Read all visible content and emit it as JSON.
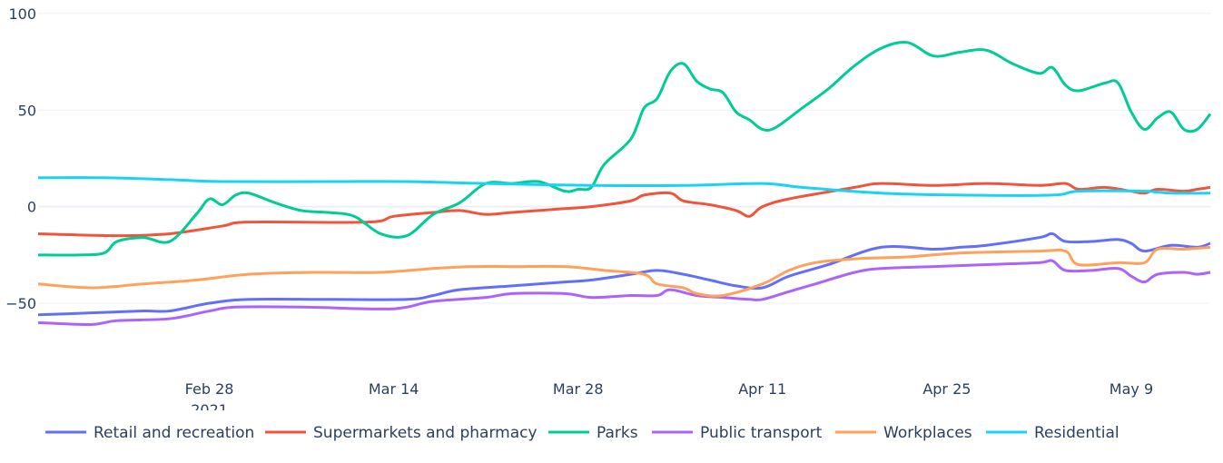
{
  "chart_data": {
    "type": "line",
    "title": "",
    "xlabel": "",
    "ylabel": "",
    "xlim": [
      "2021-02-15",
      "2021-05-15"
    ],
    "ylim": [
      -81,
      107
    ],
    "grid": true,
    "legend_placement": "bottom",
    "x_ticks": [
      {
        "date": "2021-02-28",
        "label": "Feb 28",
        "sub": "2021"
      },
      {
        "date": "2021-03-14",
        "label": "Mar 14"
      },
      {
        "date": "2021-03-28",
        "label": "Mar 28"
      },
      {
        "date": "2021-04-11",
        "label": "Apr 11"
      },
      {
        "date": "2021-04-25",
        "label": "Apr 25"
      },
      {
        "date": "2021-05-09",
        "label": "May 9"
      }
    ],
    "y_ticks": [
      {
        "value": 100,
        "label": "100"
      },
      {
        "value": 50,
        "label": "50"
      },
      {
        "value": 0,
        "label": "0"
      },
      {
        "value": -50,
        "label": "−50"
      }
    ],
    "series": [
      {
        "name": "Retail and recreation",
        "color": "#636efa",
        "points": [
          [
            "2021-02-15",
            -56
          ],
          [
            "2021-02-19",
            -55
          ],
          [
            "2021-02-23",
            -54
          ],
          [
            "2021-02-25",
            -54
          ],
          [
            "2021-02-28",
            -50
          ],
          [
            "2021-03-03",
            -48
          ],
          [
            "2021-03-09",
            -48
          ],
          [
            "2021-03-15",
            -48
          ],
          [
            "2021-03-17",
            -46
          ],
          [
            "2021-03-19",
            -43
          ],
          [
            "2021-03-23",
            -41
          ],
          [
            "2021-03-27",
            -39
          ],
          [
            "2021-03-29",
            -38
          ],
          [
            "2021-04-01",
            -35
          ],
          [
            "2021-04-03",
            -33
          ],
          [
            "2021-04-05",
            -35
          ],
          [
            "2021-04-07",
            -38
          ],
          [
            "2021-04-09",
            -41
          ],
          [
            "2021-04-11",
            -42
          ],
          [
            "2021-04-13",
            -36
          ],
          [
            "2021-04-16",
            -30
          ],
          [
            "2021-04-20",
            -21
          ],
          [
            "2021-04-24",
            -22
          ],
          [
            "2021-04-26",
            -21
          ],
          [
            "2021-04-28",
            -20
          ],
          [
            "2021-05-02",
            -16
          ],
          [
            "2021-05-03",
            -14
          ],
          [
            "2021-05-04",
            -18
          ],
          [
            "2021-05-06",
            -18
          ],
          [
            "2021-05-08",
            -17
          ],
          [
            "2021-05-09",
            -19
          ],
          [
            "2021-05-10",
            -23
          ],
          [
            "2021-05-12",
            -20
          ],
          [
            "2021-05-14",
            -21
          ],
          [
            "2021-05-15",
            -19
          ]
        ]
      },
      {
        "name": "Supermarkets and pharmacy",
        "color": "#EF553B",
        "points": [
          [
            "2021-02-15",
            -14
          ],
          [
            "2021-02-21",
            -15
          ],
          [
            "2021-02-25",
            -14
          ],
          [
            "2021-03-01",
            -10
          ],
          [
            "2021-03-03",
            -8
          ],
          [
            "2021-03-12",
            -8
          ],
          [
            "2021-03-14",
            -5
          ],
          [
            "2021-03-17",
            -3
          ],
          [
            "2021-03-19",
            -2
          ],
          [
            "2021-03-21",
            -4
          ],
          [
            "2021-03-23",
            -3
          ],
          [
            "2021-03-27",
            -1
          ],
          [
            "2021-03-29",
            0
          ],
          [
            "2021-04-01",
            3
          ],
          [
            "2021-04-02",
            6
          ],
          [
            "2021-04-04",
            7
          ],
          [
            "2021-04-05",
            3
          ],
          [
            "2021-04-07",
            1
          ],
          [
            "2021-04-09",
            -2
          ],
          [
            "2021-04-10",
            -5
          ],
          [
            "2021-04-11",
            0
          ],
          [
            "2021-04-13",
            4
          ],
          [
            "2021-04-18",
            10
          ],
          [
            "2021-04-20",
            12
          ],
          [
            "2021-04-24",
            11
          ],
          [
            "2021-04-28",
            12
          ],
          [
            "2021-05-02",
            11
          ],
          [
            "2021-05-04",
            12
          ],
          [
            "2021-05-05",
            9
          ],
          [
            "2021-05-07",
            10
          ],
          [
            "2021-05-09",
            8
          ],
          [
            "2021-05-10",
            7
          ],
          [
            "2021-05-11",
            9
          ],
          [
            "2021-05-13",
            8
          ],
          [
            "2021-05-14",
            9
          ],
          [
            "2021-05-15",
            10
          ]
        ]
      },
      {
        "name": "Parks",
        "color": "#00cc96",
        "points": [
          [
            "2021-02-15",
            -25
          ],
          [
            "2021-02-18",
            -25
          ],
          [
            "2021-02-20",
            -24
          ],
          [
            "2021-02-21",
            -18
          ],
          [
            "2021-02-23",
            -16
          ],
          [
            "2021-02-25",
            -18
          ],
          [
            "2021-02-27",
            -4
          ],
          [
            "2021-02-28",
            4
          ],
          [
            "2021-03-01",
            1
          ],
          [
            "2021-03-02",
            6
          ],
          [
            "2021-03-03",
            7
          ],
          [
            "2021-03-05",
            2
          ],
          [
            "2021-03-07",
            -2
          ],
          [
            "2021-03-09",
            -3
          ],
          [
            "2021-03-11",
            -5
          ],
          [
            "2021-03-13",
            -14
          ],
          [
            "2021-03-15",
            -15
          ],
          [
            "2021-03-17",
            -4
          ],
          [
            "2021-03-19",
            2
          ],
          [
            "2021-03-21",
            12
          ],
          [
            "2021-03-23",
            12
          ],
          [
            "2021-03-25",
            13
          ],
          [
            "2021-03-27",
            8
          ],
          [
            "2021-03-28",
            9
          ],
          [
            "2021-03-29",
            10
          ],
          [
            "2021-03-30",
            22
          ],
          [
            "2021-04-01",
            35
          ],
          [
            "2021-04-02",
            51
          ],
          [
            "2021-04-03",
            56
          ],
          [
            "2021-04-04",
            70
          ],
          [
            "2021-04-05",
            74
          ],
          [
            "2021-04-06",
            65
          ],
          [
            "2021-04-07",
            61
          ],
          [
            "2021-04-08",
            59
          ],
          [
            "2021-04-09",
            49
          ],
          [
            "2021-04-10",
            45
          ],
          [
            "2021-04-11",
            40
          ],
          [
            "2021-04-12",
            41
          ],
          [
            "2021-04-14",
            51
          ],
          [
            "2021-04-16",
            61
          ],
          [
            "2021-04-18",
            73
          ],
          [
            "2021-04-20",
            82
          ],
          [
            "2021-04-22",
            85
          ],
          [
            "2021-04-24",
            78
          ],
          [
            "2021-04-26",
            80
          ],
          [
            "2021-04-28",
            81
          ],
          [
            "2021-04-30",
            74
          ],
          [
            "2021-05-02",
            69
          ],
          [
            "2021-05-03",
            72
          ],
          [
            "2021-05-04",
            63
          ],
          [
            "2021-05-05",
            60
          ],
          [
            "2021-05-07",
            64
          ],
          [
            "2021-05-08",
            64
          ],
          [
            "2021-05-09",
            49
          ],
          [
            "2021-05-10",
            40
          ],
          [
            "2021-05-11",
            46
          ],
          [
            "2021-05-12",
            49
          ],
          [
            "2021-05-13",
            40
          ],
          [
            "2021-05-14",
            40
          ],
          [
            "2021-05-15",
            48
          ]
        ]
      },
      {
        "name": "Public transport",
        "color": "#ab63fa",
        "points": [
          [
            "2021-02-15",
            -60
          ],
          [
            "2021-02-19",
            -61
          ],
          [
            "2021-02-21",
            -59
          ],
          [
            "2021-02-25",
            -58
          ],
          [
            "2021-02-28",
            -54
          ],
          [
            "2021-03-02",
            -52
          ],
          [
            "2021-03-07",
            -52
          ],
          [
            "2021-03-13",
            -53
          ],
          [
            "2021-03-15",
            -52
          ],
          [
            "2021-03-17",
            -49
          ],
          [
            "2021-03-21",
            -47
          ],
          [
            "2021-03-23",
            -45
          ],
          [
            "2021-03-27",
            -45
          ],
          [
            "2021-03-29",
            -47
          ],
          [
            "2021-04-01",
            -46
          ],
          [
            "2021-04-03",
            -46
          ],
          [
            "2021-04-04",
            -43
          ],
          [
            "2021-04-06",
            -46
          ],
          [
            "2021-04-08",
            -47
          ],
          [
            "2021-04-10",
            -48
          ],
          [
            "2021-04-11",
            -48
          ],
          [
            "2021-04-13",
            -44
          ],
          [
            "2021-04-15",
            -40
          ],
          [
            "2021-04-18",
            -34
          ],
          [
            "2021-04-20",
            -32
          ],
          [
            "2021-04-24",
            -31
          ],
          [
            "2021-04-28",
            -30
          ],
          [
            "2021-05-02",
            -29
          ],
          [
            "2021-05-03",
            -28
          ],
          [
            "2021-05-04",
            -33
          ],
          [
            "2021-05-06",
            -33
          ],
          [
            "2021-05-08",
            -32
          ],
          [
            "2021-05-09",
            -36
          ],
          [
            "2021-05-10",
            -39
          ],
          [
            "2021-05-11",
            -35
          ],
          [
            "2021-05-13",
            -34
          ],
          [
            "2021-05-14",
            -35
          ],
          [
            "2021-05-15",
            -34
          ]
        ]
      },
      {
        "name": "Workplaces",
        "color": "#FFA15A",
        "points": [
          [
            "2021-02-15",
            -40
          ],
          [
            "2021-02-19",
            -42
          ],
          [
            "2021-02-23",
            -40
          ],
          [
            "2021-02-27",
            -38
          ],
          [
            "2021-03-03",
            -35
          ],
          [
            "2021-03-08",
            -34
          ],
          [
            "2021-03-13",
            -34
          ],
          [
            "2021-03-17",
            -32
          ],
          [
            "2021-03-20",
            -31
          ],
          [
            "2021-03-23",
            -31
          ],
          [
            "2021-03-27",
            -31
          ],
          [
            "2021-03-30",
            -33
          ],
          [
            "2021-04-02",
            -35
          ],
          [
            "2021-04-03",
            -40
          ],
          [
            "2021-04-05",
            -42
          ],
          [
            "2021-04-06",
            -45
          ],
          [
            "2021-04-08",
            -46
          ],
          [
            "2021-04-11",
            -40
          ],
          [
            "2021-04-13",
            -33
          ],
          [
            "2021-04-15",
            -29
          ],
          [
            "2021-04-18",
            -27
          ],
          [
            "2021-04-22",
            -26
          ],
          [
            "2021-04-26",
            -24
          ],
          [
            "2021-05-02",
            -23
          ],
          [
            "2021-05-04",
            -23
          ],
          [
            "2021-05-05",
            -30
          ],
          [
            "2021-05-08",
            -29
          ],
          [
            "2021-05-10",
            -29
          ],
          [
            "2021-05-11",
            -22
          ],
          [
            "2021-05-13",
            -22
          ],
          [
            "2021-05-15",
            -21
          ]
        ]
      },
      {
        "name": "Residential",
        "color": "#19d3f3",
        "points": [
          [
            "2021-02-15",
            15
          ],
          [
            "2021-02-20",
            15
          ],
          [
            "2021-02-25",
            14
          ],
          [
            "2021-03-01",
            13
          ],
          [
            "2021-03-09",
            13
          ],
          [
            "2021-03-15",
            13
          ],
          [
            "2021-03-21",
            12
          ],
          [
            "2021-03-29",
            11
          ],
          [
            "2021-04-05",
            11
          ],
          [
            "2021-04-11",
            12
          ],
          [
            "2021-04-14",
            10
          ],
          [
            "2021-04-20",
            7
          ],
          [
            "2021-04-26",
            6
          ],
          [
            "2021-05-03",
            6
          ],
          [
            "2021-05-05",
            8
          ],
          [
            "2021-05-10",
            8
          ],
          [
            "2021-05-12",
            7
          ],
          [
            "2021-05-15",
            7
          ]
        ]
      }
    ]
  }
}
